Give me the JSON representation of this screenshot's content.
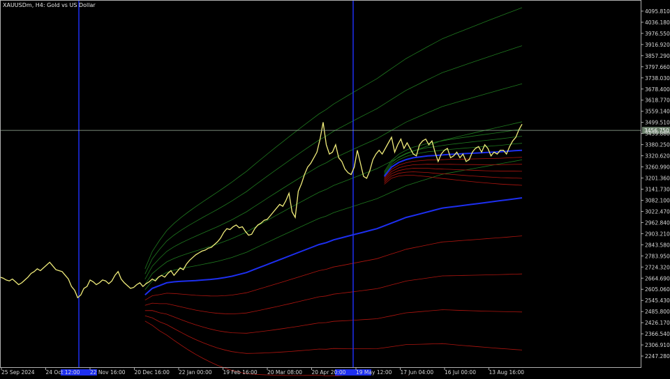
{
  "window": {
    "symbol_title": "XAUUSDm, H4:  Gold vs US Dollar"
  },
  "crosshair": {
    "price_label": "3456.750"
  },
  "chart_data": {
    "type": "line",
    "title": "XAUUSDm, H4:  Gold vs US Dollar",
    "xlabel": "",
    "ylabel": "",
    "ylim": [
      2187.8,
      4155.4
    ],
    "grid": true,
    "colors": {
      "background": "#000000",
      "frame": "#b0b0b0",
      "price": "#f0ec7a",
      "price_shadow": "#ffffff",
      "vwap": "#1d2ff0",
      "upper_bands": "#1f7a1f",
      "lower_bands": "#b0150f",
      "anchor_lines": "#1d2ff0",
      "crosshair": "#a0b8a0",
      "axis_text": "#d8d8d8"
    },
    "y_ticks": [
      "4095.810",
      "4036.180",
      "3976.550",
      "3916.920",
      "3857.290",
      "3797.660",
      "3738.030",
      "3678.400",
      "3618.770",
      "3559.140",
      "3499.510",
      "3439.880",
      "3380.250",
      "3320.620",
      "3260.990",
      "3201.360",
      "3141.730",
      "3082.100",
      "3022.470",
      "2962.840",
      "2903.210",
      "2843.580",
      "2783.950",
      "2724.320",
      "2664.690",
      "2605.060",
      "2545.430",
      "2485.800",
      "2426.170",
      "2366.540",
      "2306.910",
      "2247.280"
    ],
    "x_ticks": [
      "25 Sep 2024",
      "24 Oct 12:00",
      "22 Nov 16:00",
      "20 Dec 16:00",
      "22 Jan 00:00",
      "19 Feb 16:00",
      "20 Mar 08:00",
      "20 Apr 20:00",
      "19 May 12:00",
      "17 Jun 04:00",
      "16 Jul 00:00",
      "13 Aug 16:00"
    ],
    "anchor_dates": [
      "13 Nov 2024",
      "14 May 2025"
    ],
    "price_series": {
      "name": "",
      "values": [
        2670,
        2665,
        2655,
        2650,
        2660,
        2645,
        2630,
        2640,
        2655,
        2670,
        2690,
        2700,
        2715,
        2705,
        2720,
        2735,
        2750,
        2730,
        2710,
        2705,
        2700,
        2680,
        2660,
        2620,
        2600,
        2560,
        2575,
        2610,
        2620,
        2655,
        2645,
        2630,
        2640,
        2655,
        2650,
        2635,
        2650,
        2680,
        2700,
        2660,
        2640,
        2625,
        2610,
        2615,
        2630,
        2640,
        2620,
        2635,
        2645,
        2660,
        2650,
        2670,
        2680,
        2670,
        2690,
        2705,
        2680,
        2700,
        2720,
        2710,
        2740,
        2760,
        2775,
        2790,
        2800,
        2810,
        2815,
        2825,
        2830,
        2845,
        2860,
        2880,
        2910,
        2930,
        2925,
        2940,
        2950,
        2935,
        2940,
        2915,
        2895,
        2900,
        2930,
        2950,
        2960,
        2975,
        2980,
        3000,
        3020,
        3040,
        3060,
        3050,
        3080,
        3120,
        3020,
        2990,
        3130,
        3170,
        3220,
        3260,
        3280,
        3310,
        3340,
        3410,
        3500,
        3380,
        3330,
        3340,
        3380,
        3310,
        3290,
        3250,
        3230,
        3220,
        3260,
        3350,
        3280,
        3210,
        3200,
        3240,
        3300,
        3330,
        3350,
        3330,
        3360,
        3390,
        3420,
        3340,
        3380,
        3410,
        3360,
        3390,
        3360,
        3330,
        3320,
        3380,
        3400,
        3410,
        3380,
        3400,
        3340,
        3290,
        3330,
        3350,
        3360,
        3310,
        3320,
        3340,
        3310,
        3330,
        3290,
        3300,
        3340,
        3360,
        3370,
        3340,
        3380,
        3360,
        3320,
        3340,
        3330,
        3350,
        3350,
        3330,
        3370,
        3400,
        3420,
        3460,
        3490
      ]
    },
    "vwap_main": {
      "name": "",
      "values": [
        null,
        null,
        null,
        null,
        null,
        null,
        null,
        null,
        null,
        null,
        null,
        null,
        null,
        null,
        null,
        null,
        null,
        null,
        null,
        null,
        2575,
        2610,
        2625,
        2640,
        2645,
        2648,
        2650,
        2652,
        2655,
        2658,
        2662,
        2668,
        2675,
        2685,
        2695,
        2710,
        2725,
        2740,
        2755,
        2770,
        2785,
        2800,
        2815,
        2830,
        2845,
        2855,
        2870,
        2880,
        2890,
        2900,
        2910,
        2920,
        2930,
        2945,
        2960,
        2975,
        2990,
        3000,
        3010,
        3020,
        3030,
        3040,
        3045,
        3050,
        3055,
        3060,
        3065,
        3070,
        3075,
        3080,
        3085,
        3090,
        3095
      ]
    },
    "vwap_recent": {
      "name": "",
      "values": [
        null,
        null,
        null,
        null,
        null,
        null,
        null,
        null,
        null,
        null,
        null,
        null,
        null,
        null,
        null,
        null,
        null,
        null,
        null,
        null,
        null,
        null,
        null,
        null,
        null,
        null,
        null,
        null,
        null,
        null,
        null,
        null,
        null,
        null,
        null,
        null,
        null,
        null,
        null,
        null,
        null,
        null,
        null,
        null,
        null,
        null,
        null,
        null,
        null,
        null,
        null,
        null,
        null,
        3210,
        3260,
        3285,
        3300,
        3310,
        3315,
        3320,
        3322,
        3325,
        3328,
        3330,
        3332,
        3334,
        3336,
        3338,
        3340,
        3342,
        3345,
        3348,
        3350
      ]
    },
    "bands_note": "deviation envelopes around anchored VWAP"
  }
}
